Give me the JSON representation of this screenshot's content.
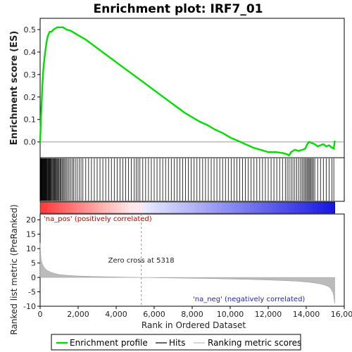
{
  "chart_data": {
    "type": "line",
    "title": "Enrichment plot: IRF7_01",
    "es_panel": {
      "ylabel": "Enrichment score (ES)",
      "ylim": [
        -0.07,
        0.55
      ],
      "yticks": [
        -0.0,
        0.1,
        0.2,
        0.3,
        0.4,
        0.5
      ],
      "ytick_labels": [
        "0.0",
        "0.1",
        "0.2",
        "0.3",
        "0.4",
        "0.5"
      ],
      "series": [
        {
          "name": "Enrichment profile",
          "color": "#00dd00",
          "x": [
            0,
            40,
            80,
            120,
            160,
            200,
            250,
            300,
            350,
            400,
            450,
            500,
            550,
            600,
            700,
            800,
            900,
            1000,
            1100,
            1200,
            1400,
            1600,
            1800,
            2000,
            2400,
            2800,
            3200,
            3600,
            4000,
            4400,
            4800,
            5200,
            5318,
            5600,
            6000,
            6400,
            6800,
            7200,
            7600,
            8000,
            8400,
            8800,
            9200,
            9600,
            10000,
            10400,
            10800,
            11200,
            11600,
            12000,
            12400,
            12800,
            13000,
            13100,
            13200,
            13400,
            13600,
            13800,
            13950,
            14050,
            14150,
            14300,
            14450,
            14600,
            14750,
            14900,
            15050,
            15200,
            15350,
            15450,
            15500
          ],
          "y": [
            0.0,
            0.1,
            0.18,
            0.25,
            0.31,
            0.35,
            0.39,
            0.42,
            0.45,
            0.47,
            0.48,
            0.49,
            0.49,
            0.49,
            0.5,
            0.505,
            0.51,
            0.51,
            0.51,
            0.51,
            0.5,
            0.495,
            0.485,
            0.475,
            0.455,
            0.43,
            0.405,
            0.38,
            0.355,
            0.33,
            0.305,
            0.28,
            0.273,
            0.255,
            0.23,
            0.205,
            0.18,
            0.155,
            0.13,
            0.11,
            0.09,
            0.075,
            0.055,
            0.04,
            0.02,
            0.005,
            -0.01,
            -0.025,
            -0.035,
            -0.045,
            -0.045,
            -0.05,
            -0.055,
            -0.06,
            -0.045,
            -0.035,
            -0.04,
            -0.035,
            -0.03,
            -0.01,
            0.0,
            -0.005,
            -0.01,
            -0.02,
            -0.015,
            -0.01,
            -0.02,
            -0.015,
            -0.025,
            -0.03,
            0.005
          ]
        }
      ]
    },
    "hits": {
      "name": "Hits",
      "positions": [
        10,
        30,
        50,
        70,
        90,
        110,
        130,
        150,
        175,
        200,
        225,
        250,
        275,
        300,
        330,
        360,
        390,
        420,
        450,
        480,
        510,
        540,
        570,
        600,
        640,
        680,
        720,
        760,
        800,
        840,
        880,
        920,
        960,
        1000,
        1050,
        1100,
        1150,
        1200,
        1260,
        1320,
        1380,
        1450,
        1520,
        1600,
        1680,
        1760,
        1850,
        1950,
        2050,
        2150,
        2250,
        2400,
        2550,
        2700,
        2850,
        3000,
        3150,
        3300,
        3450,
        3600,
        3750,
        3900,
        4050,
        4200,
        4350,
        4500,
        4650,
        4800,
        4950,
        5050,
        5150,
        5250,
        5400,
        5550,
        5700,
        5850,
        6000,
        6150,
        6300,
        6450,
        6600,
        6750,
        6900,
        7050,
        7200,
        7350,
        7500,
        7650,
        7800,
        7950,
        8100,
        8250,
        8400,
        8550,
        8700,
        8850,
        9000,
        9150,
        9300,
        9450,
        9600,
        9750,
        9900,
        10050,
        10200,
        10350,
        10500,
        10650,
        10800,
        10950,
        11100,
        11250,
        11400,
        11550,
        11700,
        11850,
        12000,
        12150,
        12300,
        12450,
        12600,
        12750,
        12900,
        13000,
        13100,
        13200,
        13300,
        13400,
        13500,
        13600,
        13700,
        13780,
        13850,
        13920,
        13980,
        14040,
        14100,
        14150,
        14200,
        14260,
        14320,
        14380,
        14450,
        14600,
        14750,
        14900,
        15050,
        15200,
        15350,
        15450
      ]
    },
    "metric_panel": {
      "name": "Ranking metric scores",
      "ylabel": "Ranked list metric (PreRanked)",
      "ylim": [
        -10,
        22
      ],
      "yticks": [
        -10,
        -5,
        0,
        5,
        10,
        15,
        20
      ],
      "ytick_labels": [
        "-10",
        "-5",
        "0",
        "5",
        "10",
        "15",
        "20"
      ],
      "x": [
        0,
        30,
        60,
        100,
        150,
        200,
        300,
        400,
        600,
        800,
        1000,
        1500,
        2000,
        3000,
        4000,
        5318,
        7000,
        9000,
        11000,
        12500,
        13500,
        14200,
        14700,
        15000,
        15200,
        15300,
        15400,
        15450,
        15500
      ],
      "values": [
        12,
        8,
        6,
        5,
        4.2,
        3.6,
        2.8,
        2.3,
        1.7,
        1.3,
        1.0,
        0.7,
        0.5,
        0.3,
        0.15,
        0.0,
        -0.2,
        -0.4,
        -0.7,
        -1.0,
        -1.3,
        -1.7,
        -2.2,
        -2.7,
        -3.3,
        -4.0,
        -5.2,
        -6.5,
        -9
      ],
      "zero_cross": "Zero cross at 5318",
      "pos_label": "'na_pos' (positively correlated)",
      "neg_label": "'na_neg' (negatively correlated)"
    },
    "x_axis": {
      "label": "Rank in Ordered Dataset",
      "xlim": [
        0,
        16000
      ],
      "ticks": [
        0,
        2000,
        4000,
        6000,
        8000,
        10000,
        12000,
        14000,
        16000
      ],
      "tick_labels": [
        "0",
        "2,000",
        "4,000",
        "6,000",
        "8,000",
        "10,000",
        "12,000",
        "14,000",
        "16,000"
      ]
    },
    "dataset_size": 15500,
    "legend": {
      "placement": "bottom",
      "items": [
        {
          "label": "Enrichment profile",
          "color": "#00dd00"
        },
        {
          "label": "Hits",
          "color": "#000000"
        },
        {
          "label": "Ranking metric scores",
          "color": "#bbbbbb"
        }
      ]
    },
    "grid": false
  }
}
